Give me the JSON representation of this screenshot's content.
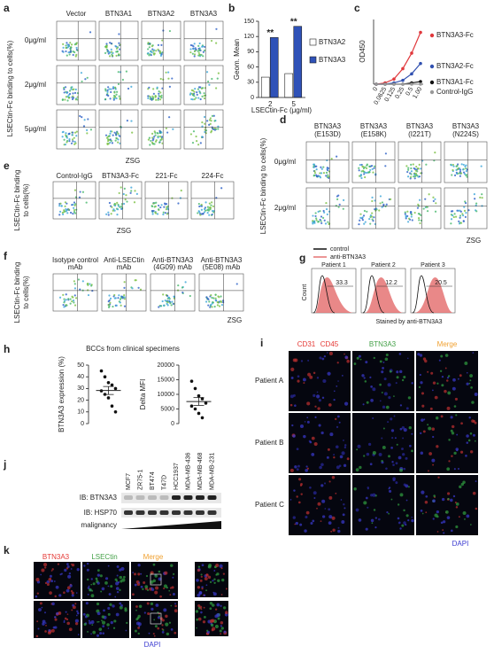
{
  "figure": {
    "a": {
      "letter": "a",
      "columns": [
        "Vector",
        "BTN3A1",
        "BTN3A2",
        "BTN3A3"
      ],
      "rows": [
        "0μg/ml",
        "2μg/ml",
        "5μg/ml"
      ],
      "y_label": "LSECtin-Fc binding to cells(%)",
      "x_label": "ZSG"
    },
    "d": {
      "letter": "d",
      "columns": [
        [
          "BTN3A3",
          "(E153D)"
        ],
        [
          "BTN3A3",
          "(E158K)"
        ],
        [
          "BTN3A3",
          "(I221T)"
        ],
        [
          "BTN3A3",
          "(N224S)"
        ]
      ],
      "rows": [
        "0μg/ml",
        "2μg/ml"
      ],
      "y_label": "LSECtin-Fc binding to cells(%)",
      "x_label": "ZSG"
    },
    "e": {
      "letter": "e",
      "columns": [
        "Control-IgG",
        "BTN3A3-Fc",
        "221-Fc",
        "224-Fc"
      ],
      "y_label": [
        "LSECtin-Fc binding",
        "to cells(%)"
      ],
      "x_label": "ZSG"
    },
    "f": {
      "letter": "f",
      "columns": [
        [
          "Isotype control",
          "mAb"
        ],
        [
          "Anti-LSECtin",
          "mAb"
        ],
        [
          "Anti-BTN3A3",
          "(4G09) mAb"
        ],
        [
          "Anti-BTN3A3",
          "(5E08) mAb"
        ]
      ],
      "y_label": [
        "LSECtin-Fc binding",
        "to cells(%)"
      ],
      "x_label": "ZSG"
    },
    "g": {
      "letter": "g",
      "legend": [
        "control",
        "anti-BTN3A3"
      ],
      "patients": [
        "Patient 1",
        "Patient 2",
        "Patient 3"
      ],
      "percents": [
        33.3,
        12.2,
        20.5
      ],
      "y_label": "Count",
      "x_label": "Stained by anti-BTN3A3"
    },
    "h": {
      "letter": "h",
      "title": "BCCs from clinical specimens"
    },
    "i": {
      "letter": "i",
      "channels": [
        "CD31",
        "CD45",
        "BTN3A3",
        "Merge"
      ],
      "patients": [
        "Patient A",
        "Patient B",
        "Patient C"
      ],
      "stain": "DAPI"
    },
    "j": {
      "letter": "j",
      "cell_lines": [
        "MCF7",
        "ZR75-1",
        "BT474",
        "T47D",
        "HCC1937",
        "MDA-MB-436",
        "MDA-MB-468",
        "MDA-MB-231"
      ],
      "blots": [
        "IB: BTN3A3",
        "IB: HSP70"
      ],
      "gradient": "malignancy"
    },
    "k": {
      "letter": "k",
      "channels": [
        "BTN3A3",
        "LSECtin",
        "Merge"
      ],
      "stain": "DAPI"
    }
  },
  "chart_data": [
    {
      "panel": "b",
      "type": "bar",
      "y_label": "Geom. Mean",
      "x_label": "LSECtin-Fc (μg/ml)",
      "categories": [
        "2",
        "5"
      ],
      "series": [
        {
          "name": "BTN3A2",
          "color": "#ffffff",
          "values": [
            40,
            47
          ]
        },
        {
          "name": "BTN3A3",
          "color": "#2f52b8",
          "values": [
            118,
            140
          ]
        }
      ],
      "ylim": [
        0,
        150
      ],
      "yticks": [
        0,
        30,
        60,
        90,
        120,
        150
      ],
      "annotations": [
        "**",
        "**"
      ]
    },
    {
      "panel": "c",
      "type": "line",
      "y_label": "OD450",
      "categories": [
        "0",
        "0.0625",
        "0.125",
        "0.25",
        "0.5",
        "1.00"
      ],
      "series": [
        {
          "name": "BTN3A3-Fc",
          "color": "#e0383c",
          "values": [
            0,
            0.05,
            0.2,
            0.6,
            1.2,
            2.0
          ]
        },
        {
          "name": "BTN3A2-Fc",
          "color": "#3050b0",
          "values": [
            0,
            0,
            0.05,
            0.15,
            0.4,
            0.8
          ]
        },
        {
          "name": "BTN3A1-Fc",
          "color": "#111111",
          "values": [
            0,
            0,
            0,
            0,
            0.05,
            0.1
          ]
        },
        {
          "name": "Control-IgG",
          "color": "#999999",
          "values": [
            0,
            0,
            0,
            0,
            0,
            0
          ]
        }
      ],
      "ylim": [
        0,
        2.5
      ]
    },
    {
      "type": "dot",
      "y_label": "BTN3A3 expression (%)",
      "values": [
        45,
        40,
        35,
        33,
        30,
        28,
        25,
        22,
        15,
        10
      ],
      "color": "#111111",
      "ylim": [
        0,
        50
      ],
      "yticks": [
        0,
        10,
        20,
        30,
        40,
        50
      ]
    },
    {
      "type": "dot",
      "y_label": "Delta MFI",
      "values": [
        14500,
        12000,
        9500,
        8500,
        7000,
        6000,
        5000,
        3500,
        2000
      ],
      "color": "#111111",
      "ylim": [
        0,
        20000
      ],
      "yticks": [
        0,
        5000,
        10000,
        15000,
        20000
      ]
    }
  ]
}
